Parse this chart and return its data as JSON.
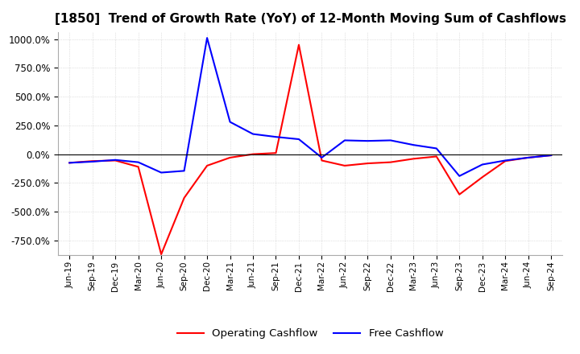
{
  "title": "[1850]  Trend of Growth Rate (YoY) of 12-Month Moving Sum of Cashflows",
  "title_fontsize": 11,
  "ylim": [
    -875,
    1062.5
  ],
  "yticks": [
    -750,
    -500,
    -250,
    0,
    250,
    500,
    750,
    1000
  ],
  "background_color": "#ffffff",
  "grid_color": "#c8c8c8",
  "x_labels": [
    "Jun-19",
    "Sep-19",
    "Dec-19",
    "Mar-20",
    "Jun-20",
    "Sep-20",
    "Dec-20",
    "Mar-21",
    "Jun-21",
    "Sep-21",
    "Dec-21",
    "Mar-22",
    "Jun-22",
    "Sep-22",
    "Dec-22",
    "Mar-23",
    "Jun-23",
    "Sep-23",
    "Dec-23",
    "Mar-24",
    "Jun-24",
    "Sep-24"
  ],
  "operating_cashflow": [
    -75,
    -60,
    -55,
    -110,
    -870,
    -380,
    -100,
    -30,
    0,
    10,
    950,
    -55,
    -100,
    -80,
    -70,
    -40,
    -20,
    -350,
    -200,
    -60,
    -30,
    -10
  ],
  "free_cashflow": [
    -75,
    -65,
    -50,
    -70,
    -160,
    -145,
    1010,
    280,
    175,
    150,
    130,
    -30,
    120,
    115,
    120,
    80,
    50,
    -190,
    -90,
    -55,
    -30,
    -10
  ],
  "op_color": "#ff0000",
  "free_color": "#0000ff",
  "line_width": 1.5
}
